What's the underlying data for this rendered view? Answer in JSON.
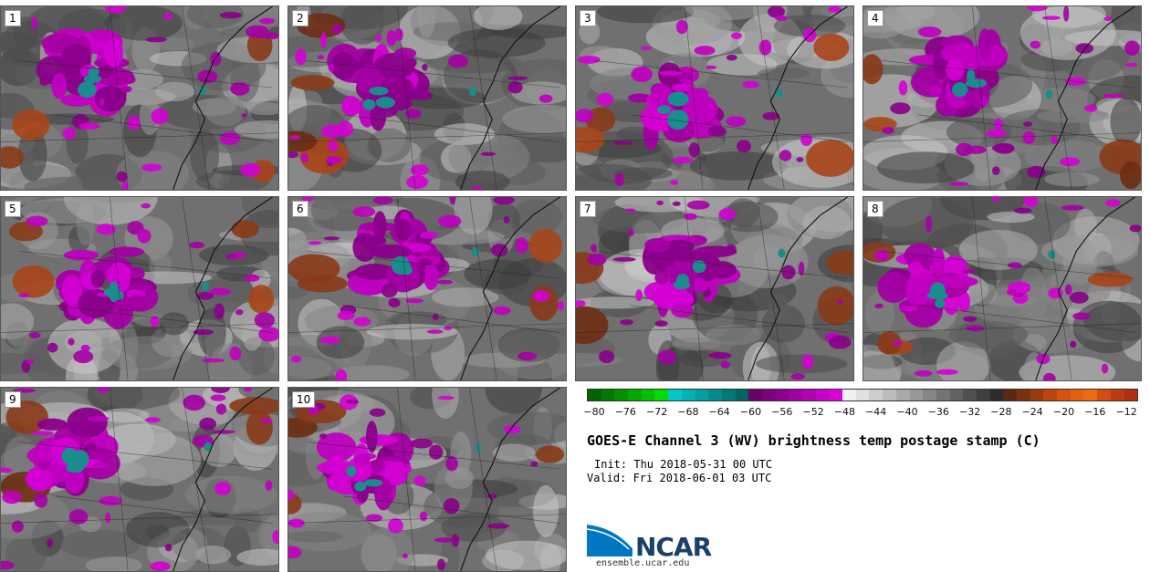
{
  "panels": [
    {
      "label": "1"
    },
    {
      "label": "2"
    },
    {
      "label": "3"
    },
    {
      "label": "4"
    },
    {
      "label": "5"
    },
    {
      "label": "6"
    },
    {
      "label": "7"
    },
    {
      "label": "8"
    },
    {
      "label": "9"
    },
    {
      "label": "10"
    }
  ],
  "colorbar": {
    "colors": [
      "#006400",
      "#007a00",
      "#009000",
      "#00a800",
      "#00c000",
      "#00dc00",
      "#00c8c8",
      "#00b4b4",
      "#00a0a0",
      "#008c8c",
      "#007878",
      "#006464",
      "#6a006a",
      "#7d007d",
      "#900090",
      "#a300a3",
      "#b600b6",
      "#c900c9",
      "#dc00dc",
      "#f0f0f0",
      "#e0e0e0",
      "#cecece",
      "#bcbcbc",
      "#aaaaaa",
      "#989898",
      "#868686",
      "#747474",
      "#626262",
      "#505050",
      "#3e3e3e",
      "#2c2c2c",
      "#5a2a10",
      "#7a3310",
      "#9a3c10",
      "#ba4510",
      "#d85010",
      "#e85f10",
      "#f26a10",
      "#d84a14",
      "#c03a10",
      "#b03010"
    ],
    "ticks": [
      "−80",
      "−76",
      "−72",
      "−68",
      "−64",
      "−60",
      "−56",
      "−52",
      "−48",
      "−44",
      "−40",
      "−36",
      "−32",
      "−28",
      "−24",
      "−20",
      "−16",
      "−12"
    ]
  },
  "title": "GOES-E Channel 3 (WV) brightness temp postage stamp (C)",
  "init": "Init: Thu 2018-05-31 00 UTC",
  "valid": "Valid: Fri 2018-06-01 03 UTC",
  "logo": {
    "text": "NCAR",
    "url": "ensemble.ucar.edu",
    "brand_color": "#1a3f6b",
    "accent_color": "#0077c0"
  }
}
